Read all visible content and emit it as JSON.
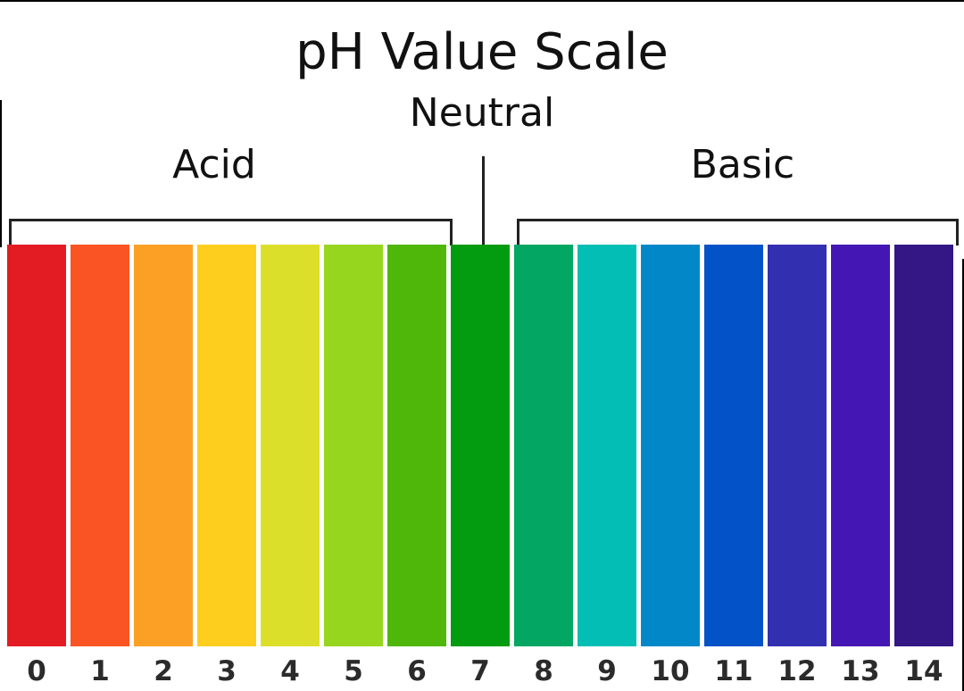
{
  "title": "pH Value Scale",
  "labels": {
    "neutral": "Neutral",
    "acid": "Acid",
    "basic": "Basic"
  },
  "scale": [
    {
      "value": "0",
      "color": "#E31B23"
    },
    {
      "value": "1",
      "color": "#FB5424"
    },
    {
      "value": "2",
      "color": "#FCA025"
    },
    {
      "value": "3",
      "color": "#FDCE1E"
    },
    {
      "value": "4",
      "color": "#DCDF2A"
    },
    {
      "value": "5",
      "color": "#97D61F"
    },
    {
      "value": "6",
      "color": "#4FB70A"
    },
    {
      "value": "7",
      "color": "#039C10"
    },
    {
      "value": "8",
      "color": "#03A662"
    },
    {
      "value": "9",
      "color": "#03BEB4"
    },
    {
      "value": "10",
      "color": "#0288C9"
    },
    {
      "value": "11",
      "color": "#0352C8"
    },
    {
      "value": "12",
      "color": "#332FB1"
    },
    {
      "value": "13",
      "color": "#4417B4"
    },
    {
      "value": "14",
      "color": "#341685"
    }
  ]
}
